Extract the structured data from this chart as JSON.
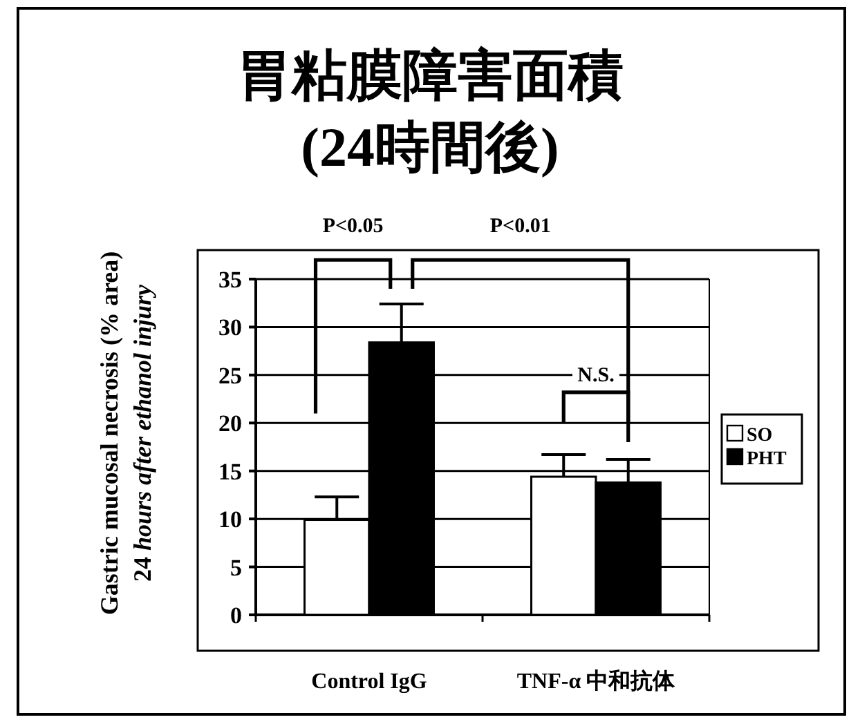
{
  "chart_data": {
    "type": "bar",
    "title": "胃粘膜障害面積\n(24時間後)",
    "ylabel": "Gastric mucosal necrosis (% area)\n24 *hours after ethanol injury*",
    "categories": [
      "Control IgG",
      "TNF-α 中和抗体"
    ],
    "series": [
      {
        "name": "SO",
        "color": "#ffffff",
        "values": [
          9.9,
          14.4
        ],
        "errors": [
          [
            9.9,
            12.3
          ],
          [
            14.4,
            16.7
          ]
        ]
      },
      {
        "name": "PHT",
        "color": "#000000",
        "values": [
          28.4,
          13.8
        ],
        "errors": [
          [
            28.4,
            32.4
          ],
          [
            13.8,
            16.2
          ]
        ]
      }
    ],
    "ylim": [
      0,
      35
    ],
    "yticks": [
      0,
      5,
      10,
      15,
      20,
      25,
      30,
      35
    ],
    "grid": "y",
    "legend": "right",
    "annotations": [
      "P<0.05",
      "P<0.01",
      "N.S."
    ]
  }
}
